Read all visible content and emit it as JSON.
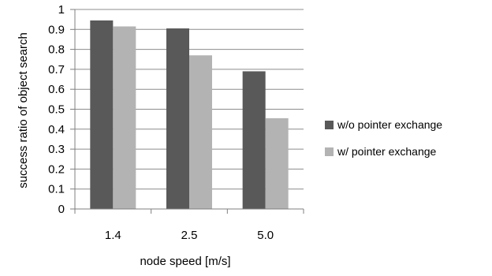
{
  "chart_data": {
    "type": "bar",
    "categories": [
      "1.4",
      "2.5",
      "5.0"
    ],
    "series": [
      {
        "name": "w/o pointer exchange",
        "values": [
          0.945,
          0.905,
          0.69
        ],
        "color": "#595959"
      },
      {
        "name": "w/ pointer exchange",
        "values": [
          0.915,
          0.77,
          0.455
        ],
        "color": "#b3b3b3"
      }
    ],
    "xlabel": "node speed [m/s]",
    "ylabel": "success ratio of object search",
    "ylim": [
      0,
      1
    ],
    "yticks": [
      "0",
      "0.1",
      "0.2",
      "0.3",
      "0.4",
      "0.5",
      "0.6",
      "0.7",
      "0.8",
      "0.9",
      "1"
    ],
    "grid": true,
    "legend_position": "right"
  }
}
